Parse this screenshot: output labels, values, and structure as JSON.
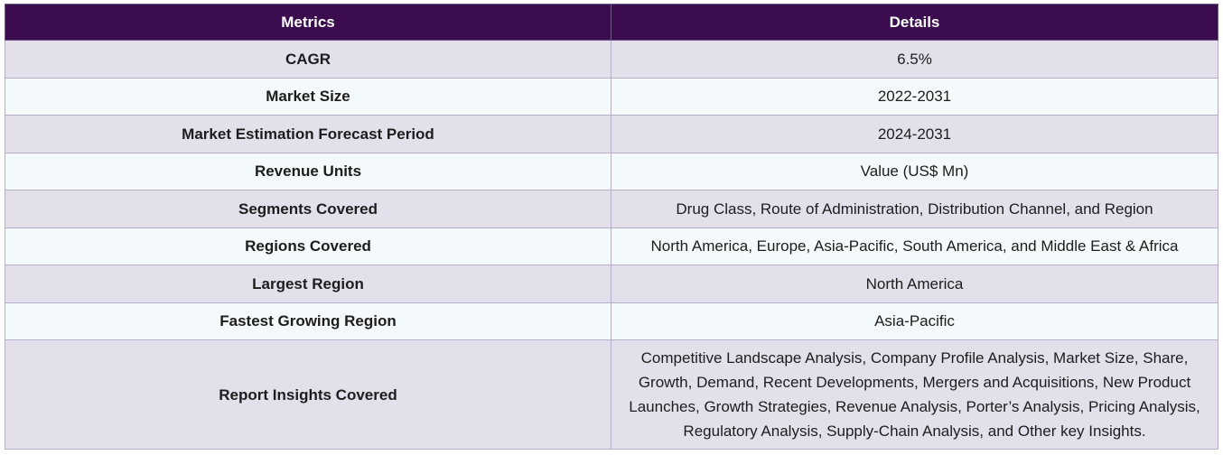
{
  "table": {
    "headers": [
      "Metrics",
      "Details"
    ],
    "rows": [
      {
        "metric": "CAGR",
        "detail": "6.5%"
      },
      {
        "metric": "Market Size",
        "detail": "2022-2031"
      },
      {
        "metric": "Market Estimation Forecast Period",
        "detail": "2024-2031"
      },
      {
        "metric": "Revenue Units",
        "detail": "Value (US$ Mn)"
      },
      {
        "metric": "Segments Covered",
        "detail": "Drug Class, Route of Administration, Distribution Channel, and Region"
      },
      {
        "metric": "Regions Covered",
        "detail": "North America, Europe, Asia-Pacific, South America, and Middle East & Africa"
      },
      {
        "metric": "Largest Region",
        "detail": "North America"
      },
      {
        "metric": "Fastest Growing Region",
        "detail": "Asia-Pacific"
      },
      {
        "metric": "Report Insights Covered",
        "detail": "Competitive Landscape Analysis, Company Profile Analysis, Market Size, Share, Growth, Demand, Recent Developments, Mergers and Acquisitions, New Product Launches, Growth Strategies, Revenue Analysis, Porter’s Analysis, Pricing Analysis, Regulatory Analysis, Supply-Chain Analysis, and Other key Insights."
      }
    ]
  },
  "colors": {
    "header_bg": "#3b0d4f",
    "row_odd_bg": "#e3dfeb",
    "row_even_bg": "#f4f9fc",
    "border": "#b7adc9"
  }
}
